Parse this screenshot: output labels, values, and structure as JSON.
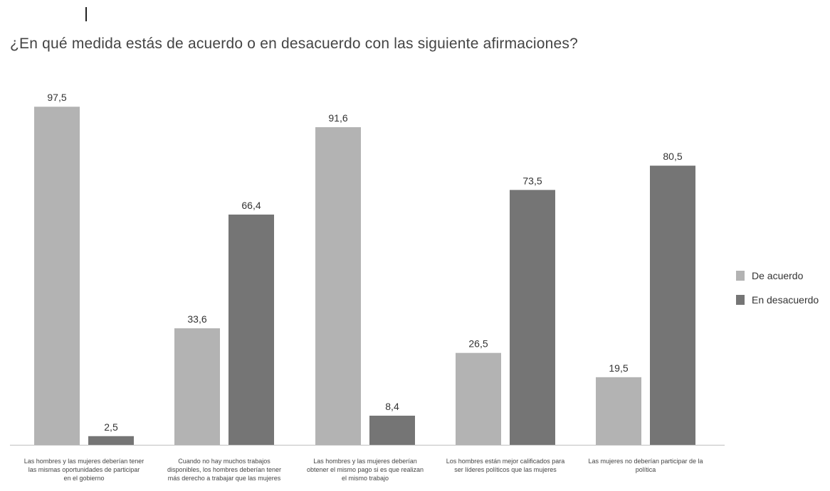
{
  "chart_data": {
    "type": "bar",
    "title": "¿En qué medida estás de acuerdo o en desacuerdo con las siguiente afirmaciones?",
    "categories": [
      "Las hombres y las mujeres deberían tener las mismas oportunidades de participar en el gobierno",
      "Cuando no hay muchos trabajos disponibles, los hombres deberían tener más derecho a trabajar que las mujeres",
      "Las hombres y las mujeres deberían obtener el mismo pago si es que realizan el mismo trabajo",
      "Los hombres están mejor calificados para ser líderes políticos que las mujeres",
      "Las mujeres no deberían participar de la política"
    ],
    "series": [
      {
        "name": "De acuerdo",
        "color": "#b3b3b3",
        "values": [
          97.5,
          33.6,
          91.6,
          26.5,
          19.5
        ]
      },
      {
        "name": "En desacuerdo",
        "color": "#757575",
        "values": [
          2.5,
          66.4,
          8.4,
          73.5,
          80.5
        ]
      }
    ],
    "value_labels": [
      [
        "97,5",
        "33,6",
        "91,6",
        "26,5",
        "19,5"
      ],
      [
        "2,5",
        "66,4",
        "8,4",
        "73,5",
        "80,5"
      ]
    ],
    "ylim": [
      0,
      100
    ],
    "grid": false,
    "legend_position": "right"
  }
}
